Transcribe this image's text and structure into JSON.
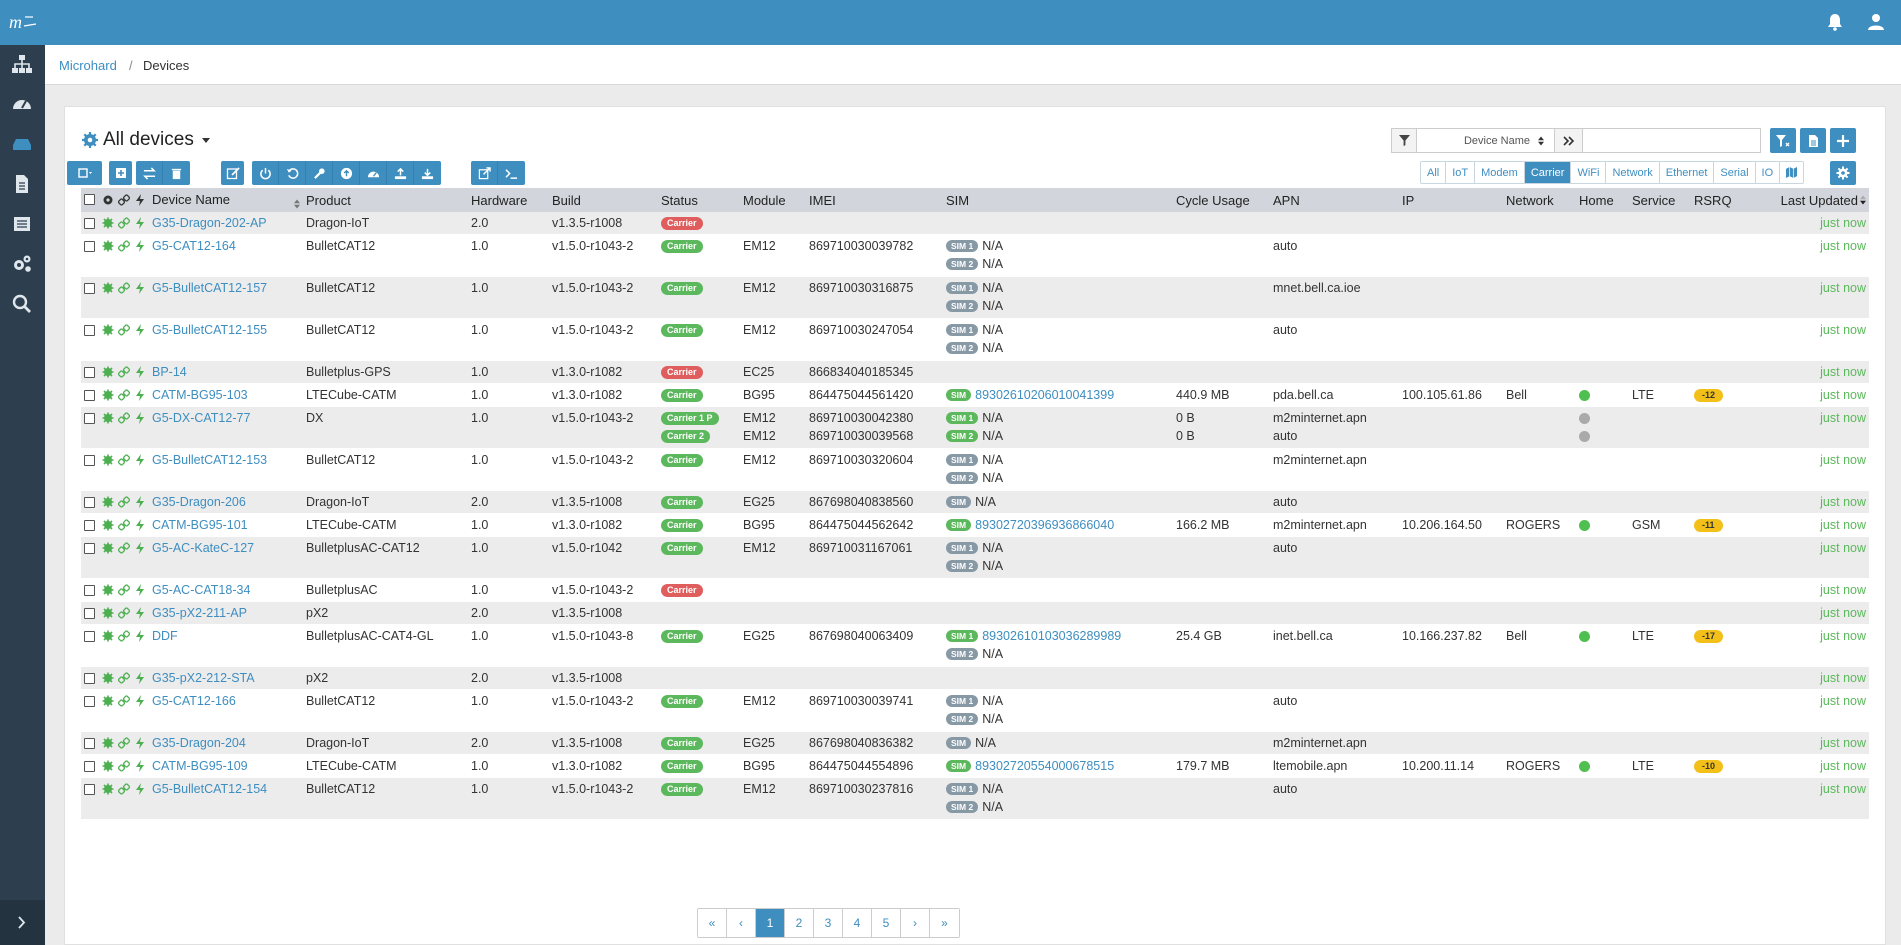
{
  "app": {
    "logo_text": "m",
    "colors": {
      "primary": "#3e8ec0",
      "sidebar": "#2d3e4e",
      "success": "#5cb85c",
      "danger": "#e05d5d",
      "warning": "#f2c018"
    }
  },
  "topbar": {
    "icons": [
      "bell-icon",
      "user-icon"
    ]
  },
  "sidebar": {
    "items": [
      "network-icon",
      "dashboard-icon",
      "devices-icon",
      "document-icon",
      "list-icon",
      "settings-icon",
      "search-icon"
    ],
    "active": "devices-icon"
  },
  "breadcrumb": {
    "root": "Microhard",
    "separator": "/",
    "current": "Devices"
  },
  "panel": {
    "title": "All devices"
  },
  "filter": {
    "field": "Device Name",
    "value": ""
  },
  "category_tabs": [
    "All",
    "IoT",
    "Modem",
    "Carrier",
    "WiFi",
    "Network",
    "Ethernet",
    "Serial",
    "IO"
  ],
  "active_tab": "Carrier",
  "table": {
    "columns": [
      "Device Name",
      "Product",
      "Hardware",
      "Build",
      "Status",
      "Module",
      "IMEI",
      "SIM",
      "Cycle Usage",
      "APN",
      "IP",
      "Network",
      "Home",
      "Service",
      "RSRQ",
      "Last Updated"
    ],
    "rows": [
      {
        "name": "G35-Dragon-202-AP",
        "product": "Dragon-IoT",
        "hw": "2.0",
        "build": "v1.3.5-r1008",
        "status": [
          {
            "t": "Carrier",
            "c": "r"
          }
        ],
        "module": [],
        "imei": [],
        "sim": [],
        "usage": [],
        "apn": [],
        "ip": "",
        "network": "",
        "home": [],
        "service": "",
        "rsrq": "",
        "updated": "just now"
      },
      {
        "name": "G5-CAT12-164",
        "product": "BulletCAT12",
        "hw": "1.0",
        "build": "v1.5.0-r1043-2",
        "status": [
          {
            "t": "Carrier",
            "c": "g"
          }
        ],
        "module": [
          "EM12"
        ],
        "imei": [
          "869710030039782"
        ],
        "sim": [
          {
            "b": "SIM 1",
            "g": false,
            "n": "N/A",
            "l": false
          },
          {
            "b": "SIM 2",
            "g": false,
            "n": "N/A",
            "l": false
          }
        ],
        "usage": [],
        "apn": [
          "auto"
        ],
        "ip": "",
        "network": "",
        "home": [],
        "service": "",
        "rsrq": "",
        "updated": "just now"
      },
      {
        "name": "G5-BulletCAT12-157",
        "product": "BulletCAT12",
        "hw": "1.0",
        "build": "v1.5.0-r1043-2",
        "status": [
          {
            "t": "Carrier",
            "c": "g"
          }
        ],
        "module": [
          "EM12"
        ],
        "imei": [
          "869710030316875"
        ],
        "sim": [
          {
            "b": "SIM 1",
            "g": false,
            "n": "N/A",
            "l": false
          },
          {
            "b": "SIM 2",
            "g": false,
            "n": "N/A",
            "l": false
          }
        ],
        "usage": [],
        "apn": [
          "mnet.bell.ca.ioe"
        ],
        "ip": "",
        "network": "",
        "home": [],
        "service": "",
        "rsrq": "",
        "updated": "just now"
      },
      {
        "name": "G5-BulletCAT12-155",
        "product": "BulletCAT12",
        "hw": "1.0",
        "build": "v1.5.0-r1043-2",
        "status": [
          {
            "t": "Carrier",
            "c": "g"
          }
        ],
        "module": [
          "EM12"
        ],
        "imei": [
          "869710030247054"
        ],
        "sim": [
          {
            "b": "SIM 1",
            "g": false,
            "n": "N/A",
            "l": false
          },
          {
            "b": "SIM 2",
            "g": false,
            "n": "N/A",
            "l": false
          }
        ],
        "usage": [],
        "apn": [
          "auto"
        ],
        "ip": "",
        "network": "",
        "home": [],
        "service": "",
        "rsrq": "",
        "updated": "just now"
      },
      {
        "name": "BP-14",
        "product": "Bulletplus-GPS",
        "hw": "1.0",
        "build": "v1.3.0-r1082",
        "status": [
          {
            "t": "Carrier",
            "c": "r"
          }
        ],
        "module": [
          "EC25"
        ],
        "imei": [
          "866834040185345"
        ],
        "sim": [],
        "usage": [],
        "apn": [],
        "ip": "",
        "network": "",
        "home": [],
        "service": "",
        "rsrq": "",
        "updated": "just now"
      },
      {
        "name": "CATM-BG95-103",
        "product": "LTECube-CATM",
        "hw": "1.0",
        "build": "v1.3.0-r1082",
        "status": [
          {
            "t": "Carrier",
            "c": "g"
          }
        ],
        "module": [
          "BG95"
        ],
        "imei": [
          "864475044561420"
        ],
        "sim": [
          {
            "b": "SIM",
            "g": true,
            "n": "89302610206010041399",
            "l": true
          }
        ],
        "usage": [
          "440.9 MB"
        ],
        "apn": [
          "pda.bell.ca"
        ],
        "ip": "100.105.61.86",
        "network": "Bell",
        "home": [
          "g"
        ],
        "service": "LTE",
        "rsrq": "-12",
        "updated": "just now"
      },
      {
        "name": "G5-DX-CAT12-77",
        "product": "DX",
        "hw": "1.0",
        "build": "v1.5.0-r1043-2",
        "status": [
          {
            "t": "Carrier 1 P",
            "c": "g"
          },
          {
            "t": "Carrier 2",
            "c": "g"
          }
        ],
        "module": [
          "EM12",
          "EM12"
        ],
        "imei": [
          "869710030042380",
          "869710030039568"
        ],
        "sim": [
          {
            "b": "SIM 1",
            "g": true,
            "n": "N/A",
            "l": false
          },
          {
            "b": "SIM 2",
            "g": true,
            "n": "N/A",
            "l": false
          }
        ],
        "usage": [
          "0 B",
          "0 B"
        ],
        "apn": [
          "m2minternet.apn",
          "auto"
        ],
        "ip": "",
        "network": "",
        "home": [
          "x",
          "x"
        ],
        "service": "",
        "rsrq": "",
        "updated": "just now"
      },
      {
        "name": "G5-BulletCAT12-153",
        "product": "BulletCAT12",
        "hw": "1.0",
        "build": "v1.5.0-r1043-2",
        "status": [
          {
            "t": "Carrier",
            "c": "g"
          }
        ],
        "module": [
          "EM12"
        ],
        "imei": [
          "869710030320604"
        ],
        "sim": [
          {
            "b": "SIM 1",
            "g": false,
            "n": "N/A",
            "l": false
          },
          {
            "b": "SIM 2",
            "g": false,
            "n": "N/A",
            "l": false
          }
        ],
        "usage": [],
        "apn": [
          "m2minternet.apn"
        ],
        "ip": "",
        "network": "",
        "home": [],
        "service": "",
        "rsrq": "",
        "updated": "just now"
      },
      {
        "name": "G35-Dragon-206",
        "product": "Dragon-IoT",
        "hw": "2.0",
        "build": "v1.3.5-r1008",
        "status": [
          {
            "t": "Carrier",
            "c": "g"
          }
        ],
        "module": [
          "EG25"
        ],
        "imei": [
          "867698040838560"
        ],
        "sim": [
          {
            "b": "SIM",
            "g": false,
            "n": "N/A",
            "l": false
          }
        ],
        "usage": [],
        "apn": [
          "auto"
        ],
        "ip": "",
        "network": "",
        "home": [],
        "service": "",
        "rsrq": "",
        "updated": "just now"
      },
      {
        "name": "CATM-BG95-101",
        "product": "LTECube-CATM",
        "hw": "1.0",
        "build": "v1.3.0-r1082",
        "status": [
          {
            "t": "Carrier",
            "c": "g"
          }
        ],
        "module": [
          "BG95"
        ],
        "imei": [
          "864475044562642"
        ],
        "sim": [
          {
            "b": "SIM",
            "g": true,
            "n": "89302720396936866040",
            "l": true
          }
        ],
        "usage": [
          "166.2 MB"
        ],
        "apn": [
          "m2minternet.apn"
        ],
        "ip": "10.206.164.50",
        "network": "ROGERS",
        "home": [
          "g"
        ],
        "service": "GSM",
        "rsrq": "-11",
        "updated": "just now"
      },
      {
        "name": "G5-AC-KateC-127",
        "product": "BulletplusAC-CAT12",
        "hw": "1.0",
        "build": "v1.5.0-r1042",
        "status": [
          {
            "t": "Carrier",
            "c": "g"
          }
        ],
        "module": [
          "EM12"
        ],
        "imei": [
          "869710031167061"
        ],
        "sim": [
          {
            "b": "SIM 1",
            "g": false,
            "n": "N/A",
            "l": false
          },
          {
            "b": "SIM 2",
            "g": false,
            "n": "N/A",
            "l": false
          }
        ],
        "usage": [],
        "apn": [
          "auto"
        ],
        "ip": "",
        "network": "",
        "home": [],
        "service": "",
        "rsrq": "",
        "updated": "just now"
      },
      {
        "name": "G5-AC-CAT18-34",
        "product": "BulletplusAC",
        "hw": "1.0",
        "build": "v1.5.0-r1043-2",
        "status": [
          {
            "t": "Carrier",
            "c": "r"
          }
        ],
        "module": [],
        "imei": [],
        "sim": [],
        "usage": [],
        "apn": [],
        "ip": "",
        "network": "",
        "home": [],
        "service": "",
        "rsrq": "",
        "updated": "just now"
      },
      {
        "name": "G35-pX2-211-AP",
        "product": "pX2",
        "hw": "2.0",
        "build": "v1.3.5-r1008",
        "status": [],
        "module": [],
        "imei": [],
        "sim": [],
        "usage": [],
        "apn": [],
        "ip": "",
        "network": "",
        "home": [],
        "service": "",
        "rsrq": "",
        "updated": "just now"
      },
      {
        "name": "DDF",
        "product": "BulletplusAC-CAT4-GL",
        "hw": "1.0",
        "build": "v1.5.0-r1043-8",
        "status": [
          {
            "t": "Carrier",
            "c": "g"
          }
        ],
        "module": [
          "EG25"
        ],
        "imei": [
          "867698040063409"
        ],
        "sim": [
          {
            "b": "SIM 1",
            "g": true,
            "n": "89302610103036289989",
            "l": true
          },
          {
            "b": "SIM 2",
            "g": false,
            "n": "N/A",
            "l": false
          }
        ],
        "usage": [
          "25.4 GB"
        ],
        "apn": [
          "inet.bell.ca"
        ],
        "ip": "10.166.237.82",
        "network": "Bell",
        "home": [
          "g"
        ],
        "service": "LTE",
        "rsrq": "-17",
        "updated": "just now"
      },
      {
        "name": "G35-pX2-212-STA",
        "product": "pX2",
        "hw": "2.0",
        "build": "v1.3.5-r1008",
        "status": [],
        "module": [],
        "imei": [],
        "sim": [],
        "usage": [],
        "apn": [],
        "ip": "",
        "network": "",
        "home": [],
        "service": "",
        "rsrq": "",
        "updated": "just now"
      },
      {
        "name": "G5-CAT12-166",
        "product": "BulletCAT12",
        "hw": "1.0",
        "build": "v1.5.0-r1043-2",
        "status": [
          {
            "t": "Carrier",
            "c": "g"
          }
        ],
        "module": [
          "EM12"
        ],
        "imei": [
          "869710030039741"
        ],
        "sim": [
          {
            "b": "SIM 1",
            "g": false,
            "n": "N/A",
            "l": false
          },
          {
            "b": "SIM 2",
            "g": false,
            "n": "N/A",
            "l": false
          }
        ],
        "usage": [],
        "apn": [
          "auto"
        ],
        "ip": "",
        "network": "",
        "home": [],
        "service": "",
        "rsrq": "",
        "updated": "just now"
      },
      {
        "name": "G35-Dragon-204",
        "product": "Dragon-IoT",
        "hw": "2.0",
        "build": "v1.3.5-r1008",
        "status": [
          {
            "t": "Carrier",
            "c": "g"
          }
        ],
        "module": [
          "EG25"
        ],
        "imei": [
          "867698040836382"
        ],
        "sim": [
          {
            "b": "SIM",
            "g": false,
            "n": "N/A",
            "l": false
          }
        ],
        "usage": [],
        "apn": [
          "m2minternet.apn"
        ],
        "ip": "",
        "network": "",
        "home": [],
        "service": "",
        "rsrq": "",
        "updated": "just now"
      },
      {
        "name": "CATM-BG95-109",
        "product": "LTECube-CATM",
        "hw": "1.0",
        "build": "v1.3.0-r1082",
        "status": [
          {
            "t": "Carrier",
            "c": "g"
          }
        ],
        "module": [
          "BG95"
        ],
        "imei": [
          "864475044554896"
        ],
        "sim": [
          {
            "b": "SIM",
            "g": true,
            "n": "89302720554000678515",
            "l": true
          }
        ],
        "usage": [
          "179.7 MB"
        ],
        "apn": [
          "ltemobile.apn"
        ],
        "ip": "10.200.11.14",
        "network": "ROGERS",
        "home": [
          "g"
        ],
        "service": "LTE",
        "rsrq": "-10",
        "updated": "just now"
      },
      {
        "name": "G5-BulletCAT12-154",
        "product": "BulletCAT12",
        "hw": "1.0",
        "build": "v1.5.0-r1043-2",
        "status": [
          {
            "t": "Carrier",
            "c": "g"
          }
        ],
        "module": [
          "EM12"
        ],
        "imei": [
          "869710030237816"
        ],
        "sim": [
          {
            "b": "SIM 1",
            "g": false,
            "n": "N/A",
            "l": false
          },
          {
            "b": "SIM 2",
            "g": false,
            "n": "N/A",
            "l": false
          }
        ],
        "usage": [],
        "apn": [
          "auto"
        ],
        "ip": "",
        "network": "",
        "home": [],
        "service": "",
        "rsrq": "",
        "updated": "just now"
      }
    ]
  },
  "pagination": {
    "first": "«",
    "prev": "‹",
    "pages": [
      "1",
      "2",
      "3",
      "4",
      "5"
    ],
    "current": "1",
    "next": "›",
    "last": "»"
  }
}
